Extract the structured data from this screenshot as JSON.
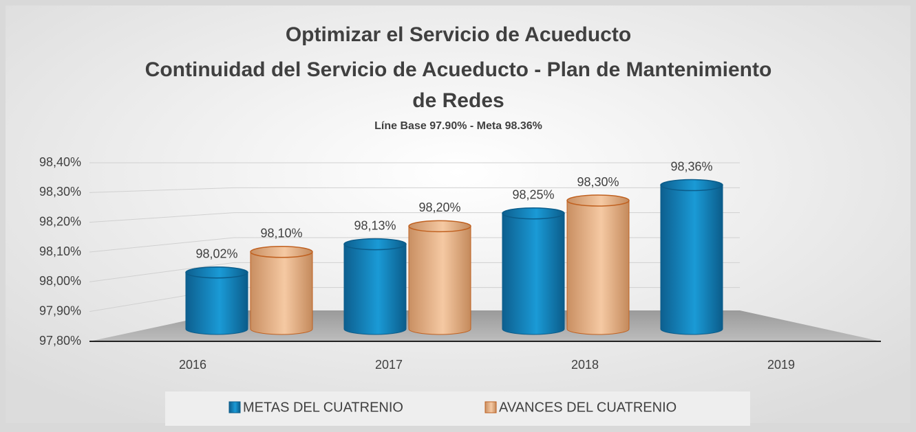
{
  "chart_data": {
    "type": "bar",
    "title": [
      "Optimizar el Servicio de Acueducto",
      "Continuidad del Servicio de Acueducto  - Plan de Mantenimiento",
      "de Redes"
    ],
    "subtitle": "Líne Base 97.90% - Meta 98.36%",
    "categories": [
      "2016",
      "2017",
      "2018",
      "2019"
    ],
    "series": [
      {
        "name": "METAS DEL CUATRENIO",
        "color": "#1a9ad6",
        "values": [
          98.02,
          98.13,
          98.25,
          98.36
        ],
        "value_labels": [
          "98,02%",
          "98,13%",
          "98,25%",
          "98,36%"
        ]
      },
      {
        "name": "AVANCES DEL CUATRENIO",
        "color": "#f5c9a3",
        "values": [
          98.1,
          98.2,
          98.3,
          null
        ],
        "value_labels": [
          "98,10%",
          "98,20%",
          "98,30%",
          null
        ]
      }
    ],
    "ylim": [
      97.8,
      98.4
    ],
    "yticks": [
      {
        "value": 97.8,
        "label": "97,80%"
      },
      {
        "value": 97.9,
        "label": "97,90%"
      },
      {
        "value": 98.0,
        "label": "98,00%"
      },
      {
        "value": 98.1,
        "label": "98,10%"
      },
      {
        "value": 98.2,
        "label": "98,20%"
      },
      {
        "value": 98.3,
        "label": "98,30%"
      },
      {
        "value": 98.4,
        "label": "98,40%"
      }
    ],
    "grid": true,
    "legend": "bottom"
  }
}
